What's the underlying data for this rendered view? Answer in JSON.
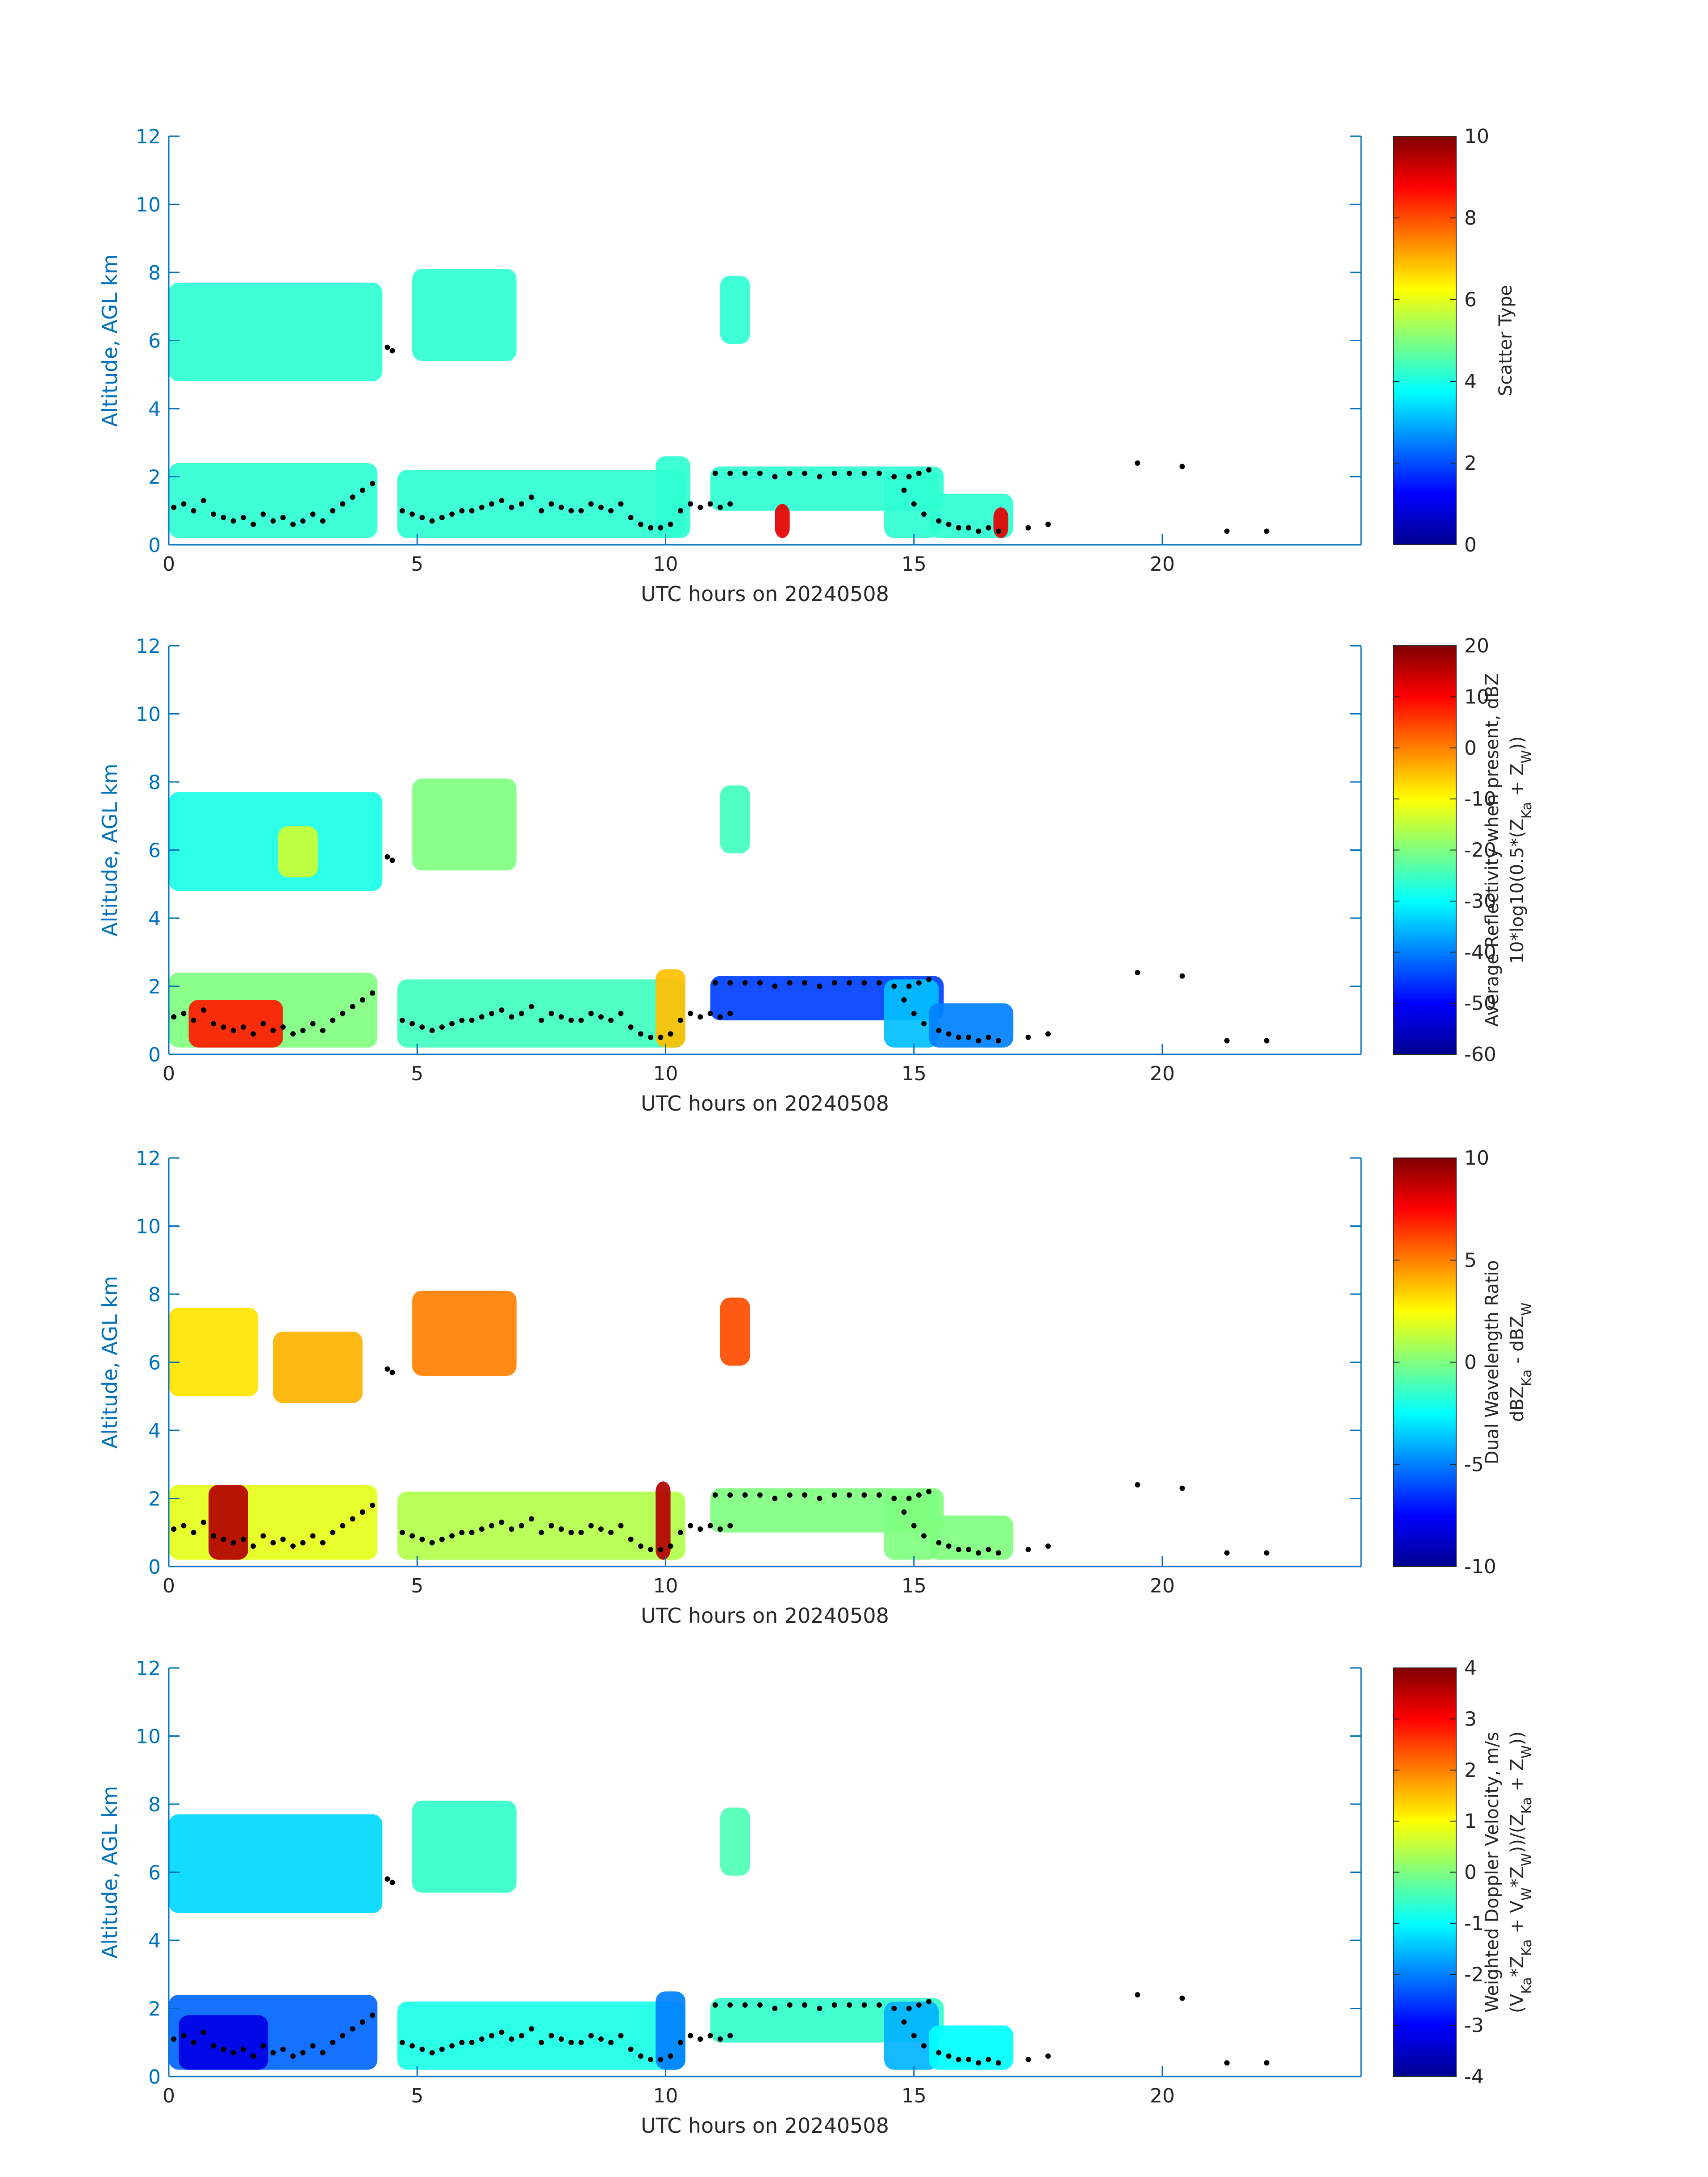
{
  "colors": {
    "axis_blue": "#0072BD",
    "text_dark": "#262626",
    "axis_line": "#0072BD",
    "marker": "#000000"
  },
  "colormap": "jet",
  "chart_data": [
    {
      "type": "heatmap",
      "xlabel": "UTC hours on 20240508",
      "ylabel": "Altitude, AGL km",
      "xlim": [
        0,
        24
      ],
      "ylim": [
        0,
        12
      ],
      "xticks": [
        0,
        5,
        10,
        15,
        20
      ],
      "yticks": [
        0,
        2,
        4,
        6,
        8,
        10,
        12
      ],
      "colorbar": {
        "range": [
          0,
          10
        ],
        "ticks": [
          0,
          2,
          4,
          6,
          8,
          10
        ],
        "label_lines": [
          "Scatter Type"
        ]
      },
      "cloud_regions": [
        {
          "x0": 0.0,
          "x1": 4.3,
          "y0": 4.8,
          "y1": 7.7,
          "value": 4.2
        },
        {
          "x0": 4.9,
          "x1": 7.0,
          "y0": 5.4,
          "y1": 8.1,
          "value": 4.2
        },
        {
          "x0": 11.1,
          "x1": 11.7,
          "y0": 5.9,
          "y1": 7.9,
          "value": 4.2
        },
        {
          "x0": 0.0,
          "x1": 4.2,
          "y0": 0.2,
          "y1": 2.4,
          "value": 4.2
        },
        {
          "x0": 4.6,
          "x1": 10.4,
          "y0": 0.2,
          "y1": 2.2,
          "value": 4.2
        },
        {
          "x0": 9.8,
          "x1": 10.5,
          "y0": 0.2,
          "y1": 2.6,
          "value": 4.2
        },
        {
          "x0": 10.9,
          "x1": 15.6,
          "y0": 1.0,
          "y1": 2.3,
          "value": 4.2
        },
        {
          "x0": 14.4,
          "x1": 15.5,
          "y0": 0.2,
          "y1": 2.2,
          "value": 4.2
        },
        {
          "x0": 15.3,
          "x1": 17.0,
          "y0": 0.2,
          "y1": 1.5,
          "value": 4.2
        },
        {
          "x0": 12.2,
          "x1": 12.5,
          "y0": 0.2,
          "y1": 1.2,
          "value": 9.0
        },
        {
          "x0": 16.6,
          "x1": 16.9,
          "y0": 0.2,
          "y1": 1.1,
          "value": 9.0
        }
      ]
    },
    {
      "type": "heatmap",
      "xlabel": "UTC hours on 20240508",
      "ylabel": "Altitude, AGL km",
      "xlim": [
        0,
        24
      ],
      "ylim": [
        0,
        12
      ],
      "xticks": [
        0,
        5,
        10,
        15,
        20
      ],
      "yticks": [
        0,
        2,
        4,
        6,
        8,
        10,
        12
      ],
      "colorbar": {
        "range": [
          -60,
          20
        ],
        "ticks": [
          -60,
          -50,
          -40,
          -30,
          -20,
          -10,
          0,
          10,
          20
        ],
        "label_lines": [
          "Average Reflectivity when present, dBZ",
          "10*log10(0.5*(Z_Ka + Z_W))"
        ]
      },
      "cloud_regions": [
        {
          "x0": 0.0,
          "x1": 4.3,
          "y0": 4.8,
          "y1": 7.7,
          "value": -28
        },
        {
          "x0": 2.2,
          "x1": 3.0,
          "y0": 5.2,
          "y1": 6.7,
          "value": -14
        },
        {
          "x0": 4.9,
          "x1": 7.0,
          "y0": 5.4,
          "y1": 8.1,
          "value": -20
        },
        {
          "x0": 11.1,
          "x1": 11.7,
          "y0": 5.9,
          "y1": 7.9,
          "value": -25
        },
        {
          "x0": 0.0,
          "x1": 4.2,
          "y0": 0.2,
          "y1": 2.4,
          "value": -20
        },
        {
          "x0": 0.4,
          "x1": 2.3,
          "y0": 0.2,
          "y1": 1.6,
          "value": 8
        },
        {
          "x0": 4.6,
          "x1": 10.4,
          "y0": 0.2,
          "y1": 2.2,
          "value": -25
        },
        {
          "x0": 9.8,
          "x1": 10.4,
          "y0": 0.2,
          "y1": 2.5,
          "value": -5
        },
        {
          "x0": 10.9,
          "x1": 15.6,
          "y0": 1.0,
          "y1": 2.3,
          "value": -45
        },
        {
          "x0": 14.4,
          "x1": 15.5,
          "y0": 0.2,
          "y1": 2.2,
          "value": -35
        },
        {
          "x0": 15.3,
          "x1": 17.0,
          "y0": 0.2,
          "y1": 1.5,
          "value": -40
        }
      ]
    },
    {
      "type": "heatmap",
      "xlabel": "UTC hours on 20240508",
      "ylabel": "Altitude, AGL km",
      "xlim": [
        0,
        24
      ],
      "ylim": [
        0,
        12
      ],
      "xticks": [
        0,
        5,
        10,
        15,
        20
      ],
      "yticks": [
        0,
        2,
        4,
        6,
        8,
        10,
        12
      ],
      "colorbar": {
        "range": [
          -10,
          10
        ],
        "ticks": [
          -10,
          -5,
          0,
          5,
          10
        ],
        "label_lines": [
          "Dual Wavelength Ratio",
          "dBZ_Ka - dBZ_W"
        ]
      },
      "cloud_regions": [
        {
          "x0": 0.0,
          "x1": 1.8,
          "y0": 5.0,
          "y1": 7.6,
          "value": 3
        },
        {
          "x0": 2.1,
          "x1": 3.9,
          "y0": 4.8,
          "y1": 6.9,
          "value": 4
        },
        {
          "x0": 4.9,
          "x1": 7.0,
          "y0": 5.6,
          "y1": 8.1,
          "value": 5
        },
        {
          "x0": 11.1,
          "x1": 11.7,
          "y0": 5.9,
          "y1": 7.9,
          "value": 6
        },
        {
          "x0": 0.0,
          "x1": 4.2,
          "y0": 0.2,
          "y1": 2.4,
          "value": 2
        },
        {
          "x0": 0.8,
          "x1": 1.6,
          "y0": 0.2,
          "y1": 2.4,
          "value": 9
        },
        {
          "x0": 4.6,
          "x1": 10.4,
          "y0": 0.2,
          "y1": 2.2,
          "value": 1
        },
        {
          "x0": 9.8,
          "x1": 10.1,
          "y0": 0.2,
          "y1": 2.5,
          "value": 9
        },
        {
          "x0": 10.9,
          "x1": 15.6,
          "y0": 1.0,
          "y1": 2.3,
          "value": 0
        },
        {
          "x0": 14.4,
          "x1": 15.5,
          "y0": 0.2,
          "y1": 2.2,
          "value": 0
        },
        {
          "x0": 15.3,
          "x1": 17.0,
          "y0": 0.2,
          "y1": 1.5,
          "value": 0
        }
      ]
    },
    {
      "type": "heatmap",
      "xlabel": "UTC hours on 20240508",
      "ylabel": "Altitude, AGL km",
      "xlim": [
        0,
        24
      ],
      "ylim": [
        0,
        12
      ],
      "xticks": [
        0,
        5,
        10,
        15,
        20
      ],
      "yticks": [
        0,
        2,
        4,
        6,
        8,
        10,
        12
      ],
      "colorbar": {
        "range": [
          -4,
          4
        ],
        "ticks": [
          -4,
          -3,
          -2,
          -1,
          0,
          1,
          2,
          3,
          4
        ],
        "label_lines": [
          "Weighted Doppler Velocity, m/s",
          "(V_Ka*Z_Ka + V_W*Z_W))/(Z_Ka + Z_W))"
        ]
      },
      "cloud_regions": [
        {
          "x0": 0.0,
          "x1": 4.3,
          "y0": 4.8,
          "y1": 7.7,
          "value": -1.3
        },
        {
          "x0": 4.9,
          "x1": 7.0,
          "y0": 5.4,
          "y1": 8.1,
          "value": -0.6
        },
        {
          "x0": 11.1,
          "x1": 11.7,
          "y0": 5.9,
          "y1": 7.9,
          "value": -0.4
        },
        {
          "x0": 0.0,
          "x1": 4.2,
          "y0": 0.2,
          "y1": 2.4,
          "value": -2.2
        },
        {
          "x0": 0.2,
          "x1": 2.0,
          "y0": 0.2,
          "y1": 1.8,
          "value": -3.2
        },
        {
          "x0": 4.6,
          "x1": 10.4,
          "y0": 0.2,
          "y1": 2.2,
          "value": -0.8
        },
        {
          "x0": 9.8,
          "x1": 10.4,
          "y0": 0.2,
          "y1": 2.5,
          "value": -2.0
        },
        {
          "x0": 10.9,
          "x1": 15.6,
          "y0": 1.0,
          "y1": 2.3,
          "value": -0.6
        },
        {
          "x0": 14.4,
          "x1": 15.5,
          "y0": 0.2,
          "y1": 2.2,
          "value": -1.6
        },
        {
          "x0": 15.3,
          "x1": 17.0,
          "y0": 0.2,
          "y1": 1.5,
          "value": -1.0
        }
      ]
    }
  ],
  "cloud_base_points": [
    [
      0.1,
      1.1
    ],
    [
      0.3,
      1.2
    ],
    [
      0.5,
      1.0
    ],
    [
      0.7,
      1.3
    ],
    [
      0.9,
      0.9
    ],
    [
      1.1,
      0.8
    ],
    [
      1.3,
      0.7
    ],
    [
      1.5,
      0.8
    ],
    [
      1.7,
      0.6
    ],
    [
      1.9,
      0.9
    ],
    [
      2.1,
      0.7
    ],
    [
      2.3,
      0.8
    ],
    [
      2.5,
      0.6
    ],
    [
      2.7,
      0.7
    ],
    [
      2.9,
      0.9
    ],
    [
      3.1,
      0.7
    ],
    [
      3.3,
      1.0
    ],
    [
      3.5,
      1.2
    ],
    [
      3.7,
      1.4
    ],
    [
      3.9,
      1.6
    ],
    [
      4.1,
      1.8
    ],
    [
      4.4,
      5.8
    ],
    [
      4.5,
      5.7
    ],
    [
      4.7,
      1.0
    ],
    [
      4.9,
      0.9
    ],
    [
      5.1,
      0.8
    ],
    [
      5.3,
      0.7
    ],
    [
      5.5,
      0.8
    ],
    [
      5.7,
      0.9
    ],
    [
      5.9,
      1.0
    ],
    [
      6.1,
      1.0
    ],
    [
      6.3,
      1.1
    ],
    [
      6.5,
      1.2
    ],
    [
      6.7,
      1.3
    ],
    [
      6.9,
      1.1
    ],
    [
      7.1,
      1.2
    ],
    [
      7.3,
      1.4
    ],
    [
      7.5,
      1.0
    ],
    [
      7.7,
      1.2
    ],
    [
      7.9,
      1.1
    ],
    [
      8.1,
      1.0
    ],
    [
      8.3,
      1.0
    ],
    [
      8.5,
      1.2
    ],
    [
      8.7,
      1.1
    ],
    [
      8.9,
      1.0
    ],
    [
      9.1,
      1.2
    ],
    [
      9.3,
      0.8
    ],
    [
      9.5,
      0.6
    ],
    [
      9.7,
      0.5
    ],
    [
      9.9,
      0.5
    ],
    [
      10.1,
      0.6
    ],
    [
      10.3,
      1.0
    ],
    [
      10.5,
      1.2
    ],
    [
      10.7,
      1.1
    ],
    [
      10.9,
      1.2
    ],
    [
      11.1,
      1.1
    ],
    [
      11.3,
      1.2
    ],
    [
      11.0,
      2.1
    ],
    [
      11.3,
      2.1
    ],
    [
      11.6,
      2.1
    ],
    [
      11.9,
      2.1
    ],
    [
      12.2,
      2.0
    ],
    [
      12.5,
      2.1
    ],
    [
      12.8,
      2.1
    ],
    [
      13.1,
      2.0
    ],
    [
      13.4,
      2.1
    ],
    [
      13.7,
      2.1
    ],
    [
      14.0,
      2.1
    ],
    [
      14.3,
      2.1
    ],
    [
      14.6,
      2.0
    ],
    [
      14.9,
      2.0
    ],
    [
      15.1,
      2.1
    ],
    [
      15.3,
      2.2
    ],
    [
      14.8,
      1.6
    ],
    [
      15.0,
      1.2
    ],
    [
      15.2,
      0.9
    ],
    [
      15.5,
      0.7
    ],
    [
      15.7,
      0.6
    ],
    [
      15.9,
      0.5
    ],
    [
      16.1,
      0.5
    ],
    [
      16.3,
      0.4
    ],
    [
      16.5,
      0.5
    ],
    [
      16.7,
      0.4
    ],
    [
      17.3,
      0.5
    ],
    [
      17.7,
      0.6
    ],
    [
      19.5,
      2.4
    ],
    [
      20.4,
      2.3
    ],
    [
      21.3,
      0.4
    ],
    [
      22.1,
      0.4
    ]
  ]
}
